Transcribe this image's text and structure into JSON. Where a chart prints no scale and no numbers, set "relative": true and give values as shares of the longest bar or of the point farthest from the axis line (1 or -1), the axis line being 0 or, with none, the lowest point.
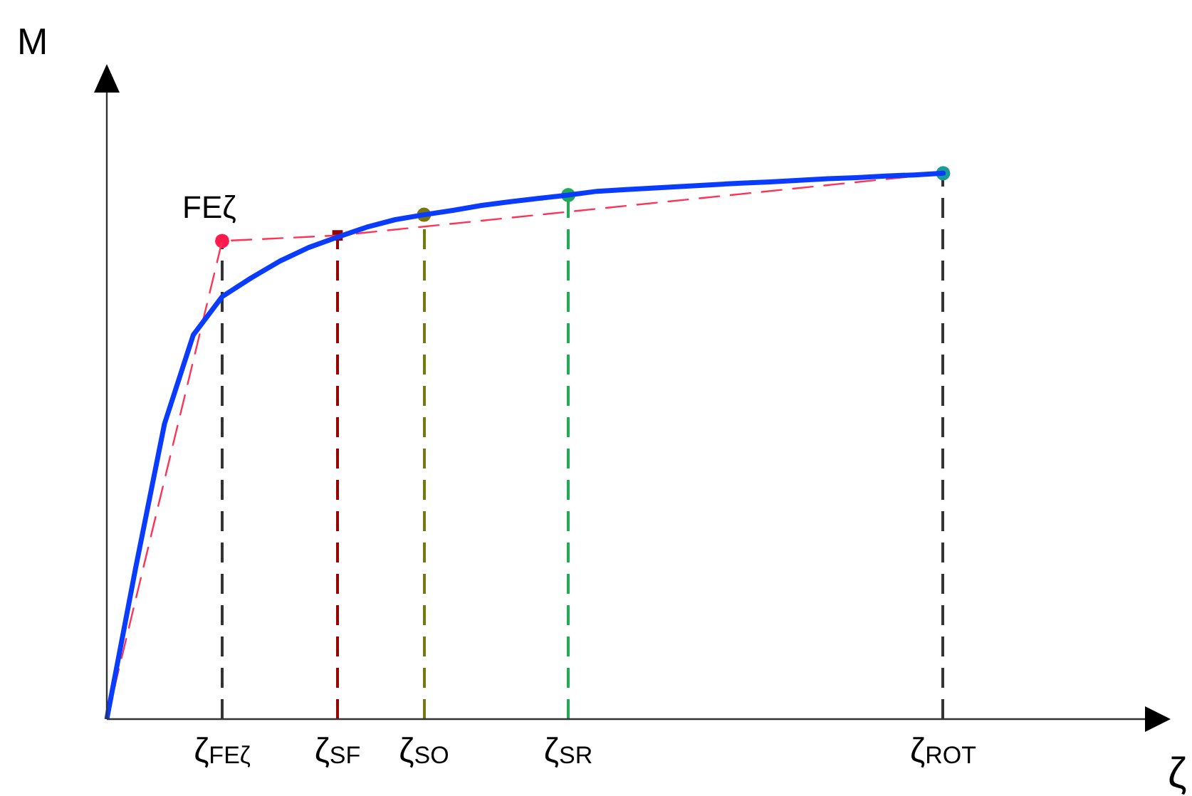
{
  "chart_data": {
    "type": "line",
    "relative": true,
    "xlabel": "ζ",
    "ylabel": "M",
    "tick_labels": "x",
    "legend": false,
    "categories": [
      null,
      null,
      null,
      null,
      "ζ$_{FEζ}$",
      null,
      null,
      null,
      "ζ$_{SF}$",
      null,
      null,
      "ζ$_{SO}$",
      null,
      null,
      null,
      null,
      "ζ$_{SR}$",
      null,
      null,
      null,
      null,
      null,
      null,
      null,
      null,
      null,
      null,
      null,
      null,
      "ζ$_{ROT}$",
      null,
      null,
      null,
      null,
      null,
      null,
      null
    ],
    "series": [
      {
        "type": "line",
        "color": "#0a3cff",
        "marker": "none",
        "line_style": "solid",
        "values": [
          0,
          0.277,
          0.541,
          0.704,
          0.774,
          0.808,
          0.839,
          0.864,
          0.883,
          0.901,
          0.915,
          0.924,
          0.932,
          0.941,
          0.948,
          0.954,
          0.96,
          0.967,
          0.97,
          0.973,
          0.976,
          0.979,
          0.982,
          0.984,
          0.987,
          0.99,
          0.992,
          0.995,
          0.997,
          1,
          null,
          null,
          null,
          null,
          null,
          null,
          null
        ]
      },
      {
        "type": "line",
        "color": "#ff3355",
        "marker": "none",
        "line_style": "dashed",
        "values": [
          0,
          null,
          null,
          null,
          0.876,
          null,
          null,
          null,
          0.886,
          null,
          null,
          null,
          null,
          null,
          null,
          null,
          null,
          null,
          null,
          null,
          null,
          null,
          null,
          null,
          null,
          null,
          null,
          null,
          null,
          1,
          null,
          null,
          null,
          null,
          null,
          null,
          null
        ]
      },
      {
        "type": "scatter",
        "color": "#ff1a4d",
        "marker": "circle",
        "values": [
          null,
          null,
          null,
          null,
          0.876,
          null,
          null,
          null,
          null,
          null,
          null,
          null,
          null,
          null,
          null,
          null,
          null,
          null,
          null,
          null,
          null,
          null,
          null,
          null,
          null,
          null,
          null,
          null,
          null,
          null,
          null,
          null,
          null,
          null,
          null,
          null,
          null
        ]
      },
      {
        "type": "lollipop",
        "color": "#990000",
        "line_style": "dashed",
        "marker": "square",
        "values": [
          null,
          null,
          null,
          null,
          null,
          null,
          null,
          null,
          0.886,
          null,
          null,
          null,
          null,
          null,
          null,
          null,
          null,
          null,
          null,
          null,
          null,
          null,
          null,
          null,
          null,
          null,
          null,
          null,
          null,
          null,
          null,
          null,
          null,
          null,
          null,
          null,
          null
        ]
      },
      {
        "type": "lollipop",
        "color": "#777711",
        "line_style": "dashed",
        "marker": "circle",
        "values": [
          null,
          null,
          null,
          null,
          null,
          null,
          null,
          null,
          null,
          null,
          null,
          0.924,
          null,
          null,
          null,
          null,
          null,
          null,
          null,
          null,
          null,
          null,
          null,
          null,
          null,
          null,
          null,
          null,
          null,
          null,
          null,
          null,
          null,
          null,
          null,
          null,
          null
        ]
      },
      {
        "type": "lollipop",
        "color": "#22aa55",
        "line_style": "dashed",
        "marker": "circle",
        "values": [
          null,
          null,
          null,
          null,
          null,
          null,
          null,
          null,
          null,
          null,
          null,
          null,
          null,
          null,
          null,
          null,
          0.96,
          null,
          null,
          null,
          null,
          null,
          null,
          null,
          null,
          null,
          null,
          null,
          null,
          null,
          null,
          null,
          null,
          null,
          null,
          null,
          null
        ]
      },
      {
        "type": "scatter",
        "color": "#1a9a9a",
        "marker": "circle",
        "values": [
          null,
          null,
          null,
          null,
          null,
          null,
          null,
          null,
          null,
          null,
          null,
          null,
          null,
          null,
          null,
          null,
          null,
          null,
          null,
          null,
          null,
          null,
          null,
          null,
          null,
          null,
          null,
          null,
          null,
          1,
          null,
          null,
          null,
          null,
          null,
          null,
          null
        ]
      }
    ],
    "ref_lines": [
      {
        "axis": "x",
        "value": "ζ$_{FEζ}$",
        "color": "#333333",
        "line_style": "dashed"
      },
      {
        "axis": "x",
        "value": "ζ$_{ROT}$",
        "color": "#333333",
        "line_style": "dashed"
      }
    ],
    "annotations": [
      {
        "text": "FEζ",
        "x": "ζ$_{FEζ}$",
        "y": 0.876
      }
    ]
  }
}
